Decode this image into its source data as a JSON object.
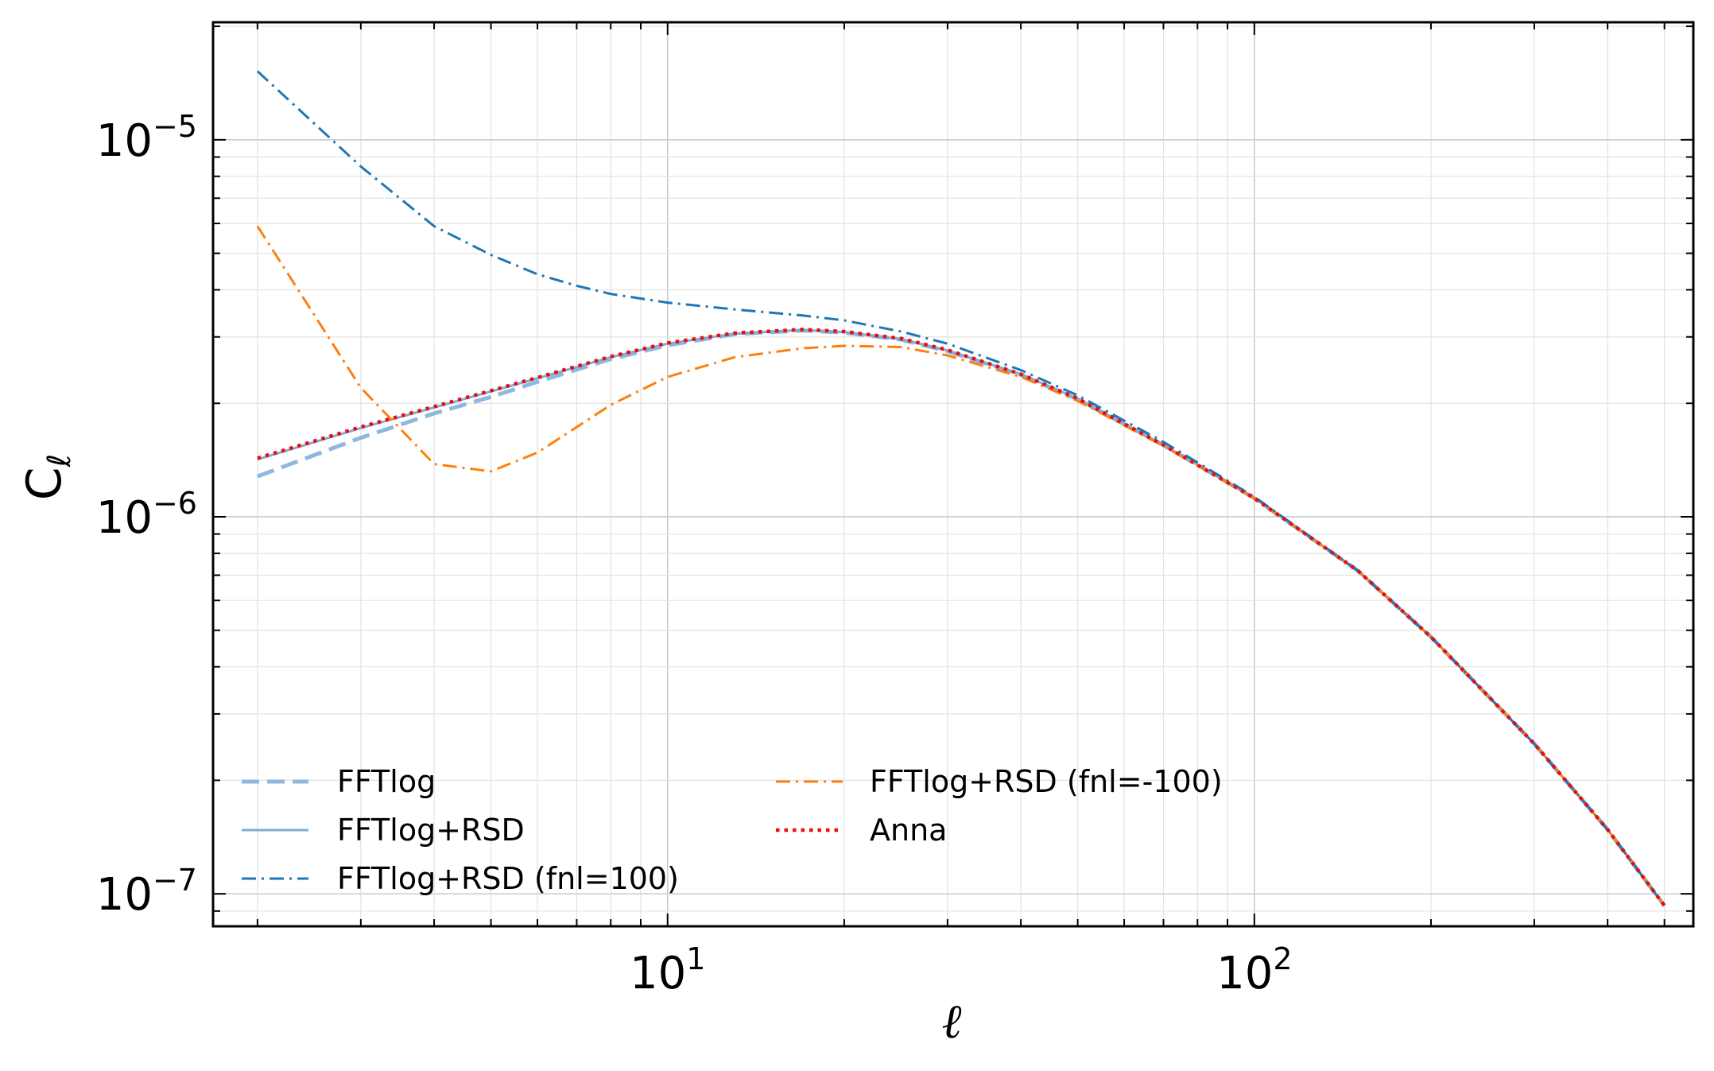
{
  "chart_data": {
    "type": "line",
    "xscale": "log",
    "yscale": "log",
    "xlim": [
      1.68,
      560
    ],
    "ylim": [
      8.2e-08,
      2.05e-05
    ],
    "xlabel": "ℓ",
    "ylabel": {
      "base": "C",
      "sub": "ℓ"
    },
    "grid": true,
    "legend_position": "lower-left",
    "x_ticks": [
      {
        "value": 10,
        "base": "10",
        "exp": "1"
      },
      {
        "value": 100,
        "base": "10",
        "exp": "2"
      }
    ],
    "y_ticks": [
      {
        "value": 1e-05,
        "base": "10",
        "exp": "−5"
      },
      {
        "value": 1e-06,
        "base": "10",
        "exp": "−6"
      },
      {
        "value": 1e-07,
        "base": "10",
        "exp": "−7"
      }
    ],
    "series": [
      {
        "name": "FFTlog",
        "color": "#8fb8de",
        "style": "dashed",
        "x": [
          2,
          3,
          4,
          5,
          6,
          8,
          10,
          13,
          17,
          20,
          25,
          30,
          40,
          50,
          70,
          100,
          150,
          200,
          300,
          400,
          500
        ],
        "y": [
          1.28e-06,
          1.62e-06,
          1.88e-06,
          2.08e-06,
          2.28e-06,
          2.62e-06,
          2.85e-06,
          3.05e-06,
          3.12e-06,
          3.08e-06,
          2.95e-06,
          2.75e-06,
          2.38e-06,
          2.05e-06,
          1.55e-06,
          1.12e-06,
          7.2e-07,
          4.8e-07,
          2.5e-07,
          1.48e-07,
          9.3e-08
        ]
      },
      {
        "name": "FFTlog+RSD",
        "color": "#7fadd7",
        "style": "solid",
        "x": [
          2,
          3,
          4,
          5,
          6,
          8,
          10,
          13,
          17,
          20,
          25,
          30,
          40,
          50,
          70,
          100,
          150,
          200,
          300,
          400,
          500
        ],
        "y": [
          1.42e-06,
          1.72e-06,
          1.95e-06,
          2.15e-06,
          2.33e-06,
          2.65e-06,
          2.88e-06,
          3.06e-06,
          3.13e-06,
          3.09e-06,
          2.96e-06,
          2.76e-06,
          2.39e-06,
          2.06e-06,
          1.55e-06,
          1.12e-06,
          7.2e-07,
          4.8e-07,
          2.5e-07,
          1.48e-07,
          9.3e-08
        ]
      },
      {
        "name": "FFTlog+RSD (fnl=100)",
        "color": "#1f77b4",
        "style": "dashdot",
        "x": [
          2,
          3,
          4,
          5,
          6,
          7,
          8,
          10,
          13,
          17,
          20,
          25,
          30,
          40,
          50,
          70,
          100,
          150,
          200,
          300,
          400,
          500
        ],
        "y": [
          1.52e-05,
          8.5e-06,
          5.9e-06,
          4.95e-06,
          4.4e-06,
          4.1e-06,
          3.9e-06,
          3.7e-06,
          3.55e-06,
          3.42e-06,
          3.32e-06,
          3.1e-06,
          2.88e-06,
          2.45e-06,
          2.1e-06,
          1.58e-06,
          1.13e-06,
          7.2e-07,
          4.8e-07,
          2.5e-07,
          1.48e-07,
          9.3e-08
        ]
      },
      {
        "name": "FFTlog+RSD (fnl=-100)",
        "color": "#ff7f0e",
        "style": "dashdot",
        "x": [
          2,
          3,
          4,
          5,
          6,
          8,
          10,
          13,
          17,
          20,
          25,
          30,
          40,
          50,
          70,
          100,
          150,
          200,
          300,
          400,
          500
        ],
        "y": [
          5.9e-06,
          2.2e-06,
          1.38e-06,
          1.32e-06,
          1.48e-06,
          1.98e-06,
          2.35e-06,
          2.65e-06,
          2.8e-06,
          2.84e-06,
          2.82e-06,
          2.68e-06,
          2.35e-06,
          2.03e-06,
          1.54e-06,
          1.12e-06,
          7.2e-07,
          4.8e-07,
          2.5e-07,
          1.48e-07,
          9.3e-08
        ]
      },
      {
        "name": "Anna",
        "color": "#e8100f",
        "style": "dotted",
        "x": [
          2,
          3,
          4,
          5,
          6,
          8,
          10,
          13,
          17,
          20,
          25,
          30,
          40,
          50,
          70,
          100,
          150,
          200,
          300,
          400,
          500
        ],
        "y": [
          1.43e-06,
          1.73e-06,
          1.96e-06,
          2.16e-06,
          2.34e-06,
          2.66e-06,
          2.89e-06,
          3.07e-06,
          3.14e-06,
          3.1e-06,
          2.97e-06,
          2.77e-06,
          2.39e-06,
          2.06e-06,
          1.55e-06,
          1.12e-06,
          7.2e-07,
          4.8e-07,
          2.5e-07,
          1.48e-07,
          9.3e-08
        ]
      }
    ],
    "legend": {
      "col1": [
        "FFTlog",
        "FFTlog+RSD",
        "FFTlog+RSD (fnl=100)"
      ],
      "col2": [
        "FFTlog+RSD (fnl=-100)",
        "Anna"
      ]
    }
  }
}
